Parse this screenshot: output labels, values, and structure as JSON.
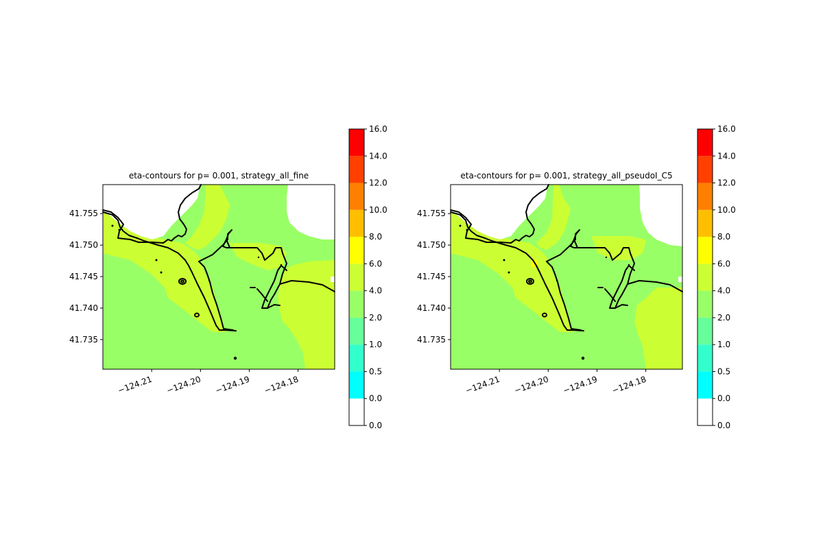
{
  "chart_data": [
    {
      "type": "heatmap",
      "title": "eta-contours for p= 0.001, strategy_all_fine",
      "x_tick_labels": [
        "−124.21",
        "−124.20",
        "−124.19",
        "−124.18"
      ],
      "x_ticks": [
        -124.21,
        -124.2,
        -124.19,
        -124.18
      ],
      "y_tick_labels": [
        "41.735",
        "41.740",
        "41.745",
        "41.750",
        "41.755"
      ],
      "y_ticks": [
        41.735,
        41.74,
        41.745,
        41.75,
        41.755
      ],
      "xlim": [
        -124.22,
        -124.1725
      ],
      "ylim": [
        41.7303,
        41.7596
      ],
      "dominant_levels": {
        "offshore": "2.0-4.0",
        "inland": "4.0-6.0"
      }
    },
    {
      "type": "heatmap",
      "title": "eta-contours for p= 0.001, strategy_all_pseudoI_C5",
      "x_tick_labels": [
        "−124.21",
        "−124.20",
        "−124.19",
        "−124.18"
      ],
      "x_ticks": [
        -124.21,
        -124.2,
        -124.19,
        -124.18
      ],
      "y_tick_labels": [
        "41.735",
        "41.740",
        "41.745",
        "41.750",
        "41.755"
      ],
      "y_ticks": [
        41.735,
        41.74,
        41.745,
        41.75,
        41.755
      ],
      "xlim": [
        -124.22,
        -124.1725
      ],
      "ylim": [
        41.7303,
        41.7596
      ],
      "dominant_levels": {
        "offshore": "2.0-4.0",
        "inland": "4.0-6.0"
      }
    }
  ],
  "colorbar": {
    "tick_labels": [
      "0.0",
      "0.0",
      "0.5",
      "1.0",
      "2.0",
      "4.0",
      "6.0",
      "8.0",
      "10.0",
      "12.0",
      "14.0",
      "16.0"
    ],
    "colors": [
      "#ffffff",
      "#00ffff",
      "#33ffcc",
      "#66ff99",
      "#99ff66",
      "#ccff33",
      "#ffff00",
      "#ffbf00",
      "#ff8000",
      "#ff4000",
      "#ff0000"
    ]
  }
}
